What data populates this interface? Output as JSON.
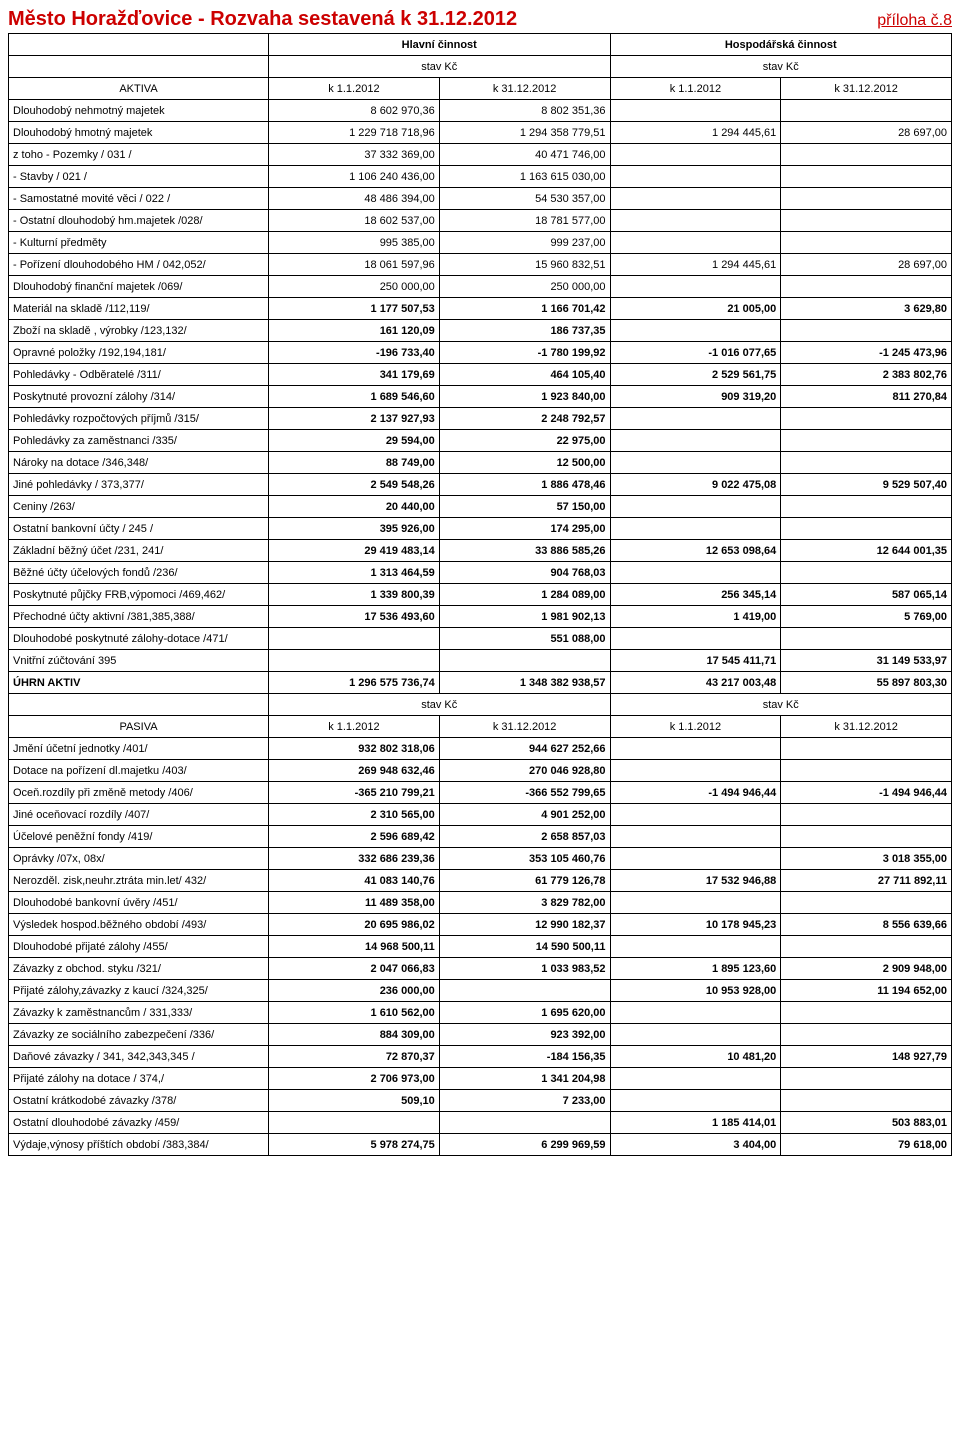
{
  "title": "Město Horažďovice  -  Rozvaha  sestavená k 31.12.2012",
  "appendix": "příloha č.8",
  "header1_left": "Hlavní činnost",
  "header1_right": "Hospodářská činnost",
  "header2": "stav  Kč",
  "aktiva_label": "AKTIVA",
  "pasiva_label": "PASIVA",
  "dates": {
    "d1": "k 1.1.2012",
    "d2": "k 31.12.2012",
    "d3": "k 1.1.2012",
    "d4": "k 31.12.2012"
  },
  "aktiva_rows": [
    {
      "label": "Dlouhodobý nehmotný majetek",
      "v": [
        "8 602 970,36",
        "8 802 351,36",
        "",
        ""
      ]
    },
    {
      "label": "Dlouhodobý hmotný majetek",
      "v": [
        "1 229 718 718,96",
        "1 294 358 779,51",
        "1 294 445,61",
        "28 697,00"
      ]
    },
    {
      "label": "z toho - Pozemky   / 031 /",
      "v": [
        "37 332 369,00",
        "40 471 746,00",
        "",
        ""
      ]
    },
    {
      "label": "  - Stavby      / 021 /",
      "v": [
        "1 106 240 436,00",
        "1 163 615 030,00",
        "",
        ""
      ]
    },
    {
      "label": "  - Samostatné movité věci  / 022 /",
      "v": [
        "48 486 394,00",
        "54 530 357,00",
        "",
        ""
      ]
    },
    {
      "label": "  - Ostatní dlouhodobý hm.majetek /028/",
      "v": [
        "18 602 537,00",
        "18 781 577,00",
        "",
        ""
      ]
    },
    {
      "label": "  - Kulturní předměty",
      "v": [
        "995 385,00",
        "999 237,00",
        "",
        ""
      ]
    },
    {
      "label": "  - Pořízení dlouhodobého HM  / 042,052/",
      "v": [
        "18 061 597,96",
        "15 960 832,51",
        "1 294 445,61",
        "28 697,00"
      ]
    },
    {
      "label": "Dlouhodobý finanční majetek  /069/",
      "v": [
        "250 000,00",
        "250 000,00",
        "",
        ""
      ]
    },
    {
      "label": "Materiál na skladě   /112,119/",
      "v": [
        "1 177 507,53",
        "1 166 701,42",
        "21 005,00",
        "3 629,80"
      ],
      "bold": true
    },
    {
      "label": "Zboží na skladě , výrobky /123,132/",
      "v": [
        "161 120,09",
        "186 737,35",
        "",
        ""
      ],
      "bold": true
    },
    {
      "label": "Opravné položky /192,194,181/",
      "v": [
        "-196 733,40",
        "-1 780 199,92",
        "-1 016 077,65",
        "-1 245 473,96"
      ],
      "bold": true
    },
    {
      "label": "Pohledávky - Odběratelé  /311/",
      "v": [
        "341 179,69",
        "464 105,40",
        "2 529 561,75",
        "2 383 802,76"
      ],
      "bold": true
    },
    {
      "label": "Poskytnuté provozní zálohy  /314/",
      "v": [
        "1 689 546,60",
        "1 923 840,00",
        "909 319,20",
        "811 270,84"
      ],
      "bold": true
    },
    {
      "label": "Pohledávky rozpočtových příjmů   /315/",
      "v": [
        "2 137 927,93",
        "2 248 792,57",
        "",
        ""
      ],
      "bold": true
    },
    {
      "label": "Pohledávky za zaměstnanci   /335/",
      "v": [
        "29 594,00",
        "22 975,00",
        "",
        ""
      ],
      "bold": true
    },
    {
      "label": "Nároky na dotace /346,348/",
      "v": [
        "88 749,00",
        "12 500,00",
        "",
        ""
      ],
      "bold": true
    },
    {
      "label": "Jiné pohledávky   / 373,377/",
      "v": [
        "2 549 548,26",
        "1 886 478,46",
        "9 022 475,08",
        "9 529 507,40"
      ],
      "bold": true
    },
    {
      "label": "Ceniny   /263/",
      "v": [
        "20 440,00",
        "57 150,00",
        "",
        ""
      ],
      "bold": true
    },
    {
      "label": "Ostatní bankovní účty   / 245 /",
      "v": [
        "395 926,00",
        "174 295,00",
        "",
        ""
      ],
      "bold": true
    },
    {
      "label": "Základní běžný účet      /231, 241/",
      "v": [
        "29 419 483,14",
        "33 886 585,26",
        "12 653 098,64",
        "12 644 001,35"
      ],
      "bold": true
    },
    {
      "label": "Běžné účty účelových fondů   /236/",
      "v": [
        "1 313 464,59",
        "904 768,03",
        "",
        ""
      ],
      "bold": true
    },
    {
      "label": "Poskytnuté  půjčky FRB,výpomoci  /469,462/",
      "v": [
        "1 339 800,39",
        "1 284 089,00",
        "256 345,14",
        "587 065,14"
      ],
      "bold": true
    },
    {
      "label": "Přechodné účty aktivní   /381,385,388/",
      "v": [
        "17 536 493,60",
        "1 981 902,13",
        "1 419,00",
        "5 769,00"
      ],
      "bold": true
    },
    {
      "label": "Dlouhodobé poskytnuté zálohy-dotace /471/",
      "v": [
        "",
        "551 088,00",
        "",
        ""
      ],
      "bold": true
    },
    {
      "label": "Vnitřní zúčtování   395",
      "v": [
        "",
        "",
        "17 545 411,71",
        "31 149 533,97"
      ],
      "bold": true
    }
  ],
  "uhrn_aktiv": {
    "label": "ÚHRN AKTIV",
    "v": [
      "1 296 575 736,74",
      "1 348 382 938,57",
      "43 217 003,48",
      "55 897 803,30"
    ]
  },
  "pasiva_rows": [
    {
      "label": "Jmění účetní jednotky  /401/",
      "v": [
        "932 802 318,06",
        "944 627 252,66",
        "",
        ""
      ],
      "bold": true
    },
    {
      "label": "Dotace na pořízení dl.majetku /403/",
      "v": [
        "269 948 632,46",
        "270 046 928,80",
        "",
        ""
      ],
      "bold": true
    },
    {
      "label": "Oceň.rozdíly při změně metody /406/",
      "v": [
        "-365 210 799,21",
        "-366 552 799,65",
        "-1 494 946,44",
        "-1 494 946,44"
      ],
      "bold": true
    },
    {
      "label": "Jiné oceňovací rozdíly /407/",
      "v": [
        "2 310 565,00",
        "4 901 252,00",
        "",
        ""
      ],
      "bold": true
    },
    {
      "label": "Účelové peněžní fondy   /419/",
      "v": [
        "2 596 689,42",
        "2 658 857,03",
        "",
        ""
      ],
      "bold": true
    },
    {
      "label": "Oprávky /07x, 08x/",
      "v": [
        "332 686 239,36",
        "353 105 460,76",
        "",
        "3 018 355,00"
      ],
      "bold": true
    },
    {
      "label": "Nerozděl. zisk,neuhr.ztráta min.let/ 432/",
      "v": [
        "41 083 140,76",
        "61 779 126,78",
        "17 532 946,88",
        "27 711 892,11"
      ],
      "bold": true
    },
    {
      "label": "Dlouhodobé bankovní úvěry /451/",
      "v": [
        "11 489 358,00",
        "3 829 782,00",
        "",
        ""
      ],
      "bold": true
    },
    {
      "label": "Výsledek hospod.běžného období /493/",
      "v": [
        "20 695 986,02",
        "12 990 182,37",
        "10 178 945,23",
        "8 556 639,66"
      ],
      "bold": true
    },
    {
      "label": "Dlouhodobé přijaté zálohy /455/",
      "v": [
        "14 968 500,11",
        "14 590 500,11",
        "",
        ""
      ],
      "bold": true
    },
    {
      "label": "Závazky z obchod. styku  /321/",
      "v": [
        "2 047 066,83",
        "1 033 983,52",
        "1 895 123,60",
        "2 909 948,00"
      ],
      "bold": true
    },
    {
      "label": "Přijaté zálohy,závazky z kaucí  /324,325/",
      "v": [
        "236 000,00",
        "",
        "10 953 928,00",
        "11 194 652,00"
      ],
      "bold": true
    },
    {
      "label": "Závazky k zaměstnancům  / 331,333/",
      "v": [
        "1 610 562,00",
        "1 695 620,00",
        "",
        ""
      ],
      "bold": true
    },
    {
      "label": "Závazky ze sociálního zabezpečení /336/",
      "v": [
        "884 309,00",
        "923 392,00",
        "",
        ""
      ],
      "bold": true
    },
    {
      "label": "Daňové závazky   / 341, 342,343,345 /",
      "v": [
        "72 870,37",
        "-184 156,35",
        "10 481,20",
        "148 927,79"
      ],
      "bold": true
    },
    {
      "label": "Přijaté zálohy na dotace  / 374,/",
      "v": [
        "2 706 973,00",
        "1 341 204,98",
        "",
        ""
      ],
      "bold": true
    },
    {
      "label": "Ostatní krátkodobé závazky  /378/",
      "v": [
        "509,10",
        "7 233,00",
        "",
        ""
      ],
      "bold": true
    },
    {
      "label": "Ostatní dlouhodobé závazky /459/",
      "v": [
        "",
        "",
        "1 185 414,01",
        "503 883,01"
      ],
      "bold": true
    },
    {
      "label": "Výdaje,výnosy příštích období  /383,384/",
      "v": [
        "5 978 274,75",
        "6 299 969,59",
        "3 404,00",
        "79 618,00"
      ],
      "bold": true
    }
  ]
}
